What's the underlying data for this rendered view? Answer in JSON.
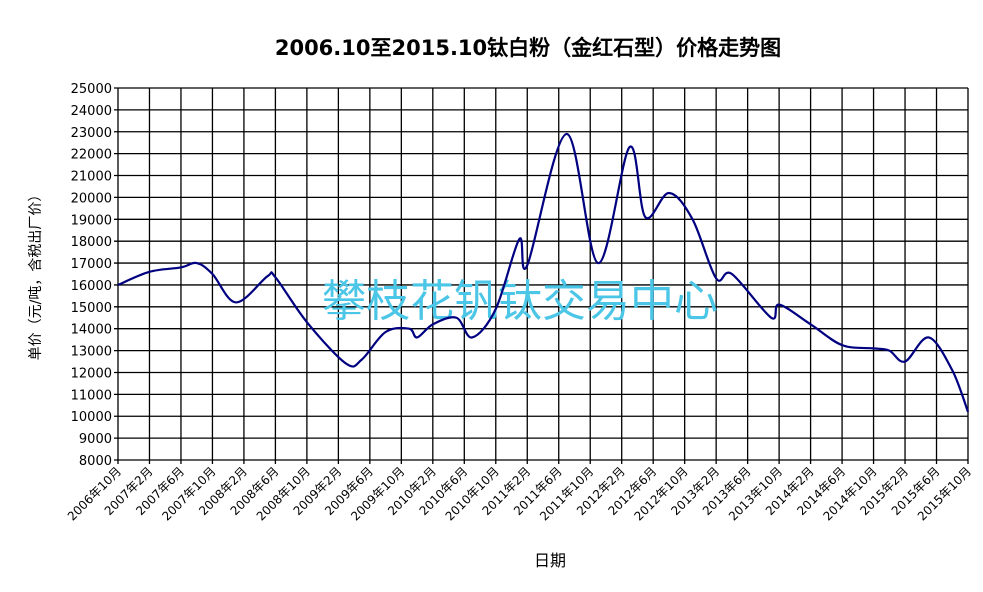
{
  "chart_data": {
    "type": "line",
    "title": "2006.10至2015.10钛白粉（金红石型）价格走势图",
    "xlabel": "日期",
    "ylabel": "单价（元/吨，含税出厂价）",
    "ylim": [
      8000,
      25000
    ],
    "ytick_step": 1000,
    "grid": true,
    "smooth": true,
    "line_color": "#000080",
    "watermark": "攀枝花钒钛交易中心",
    "watermark_color": "#4cc6e6",
    "xticks": [
      "2006-10",
      "2007-02",
      "2007-06",
      "2007-10",
      "2008-02",
      "2008-06",
      "2008-10",
      "2009-02",
      "2009-06",
      "2009-10",
      "2010-02",
      "2010-06",
      "2010-10",
      "2011-02",
      "2011-06",
      "2011-10",
      "2012-02",
      "2012-06",
      "2012-10",
      "2013-02",
      "2013-06",
      "2013-10",
      "2014-02",
      "2014-06",
      "2014-10",
      "2015-02",
      "2015-06",
      "2015-10"
    ],
    "xtick_labels": [
      "2006年10月",
      "2007年2月",
      "2007年6月",
      "2007年10月",
      "2008年2月",
      "2008年6月",
      "2008年10月",
      "2009年2月",
      "2009年6月",
      "2009年10月",
      "2010年2月",
      "2010年6月",
      "2010年10月",
      "2011年2月",
      "2011年6月",
      "2011年10月",
      "2012年2月",
      "2012年6月",
      "2012年10月",
      "2013年2月",
      "2013年6月",
      "2013年10月",
      "2014年2月",
      "2014年6月",
      "2014年10月",
      "2015年2月",
      "2015年6月",
      "2015年10月"
    ],
    "points": [
      {
        "date": "2006-10",
        "value": 16000
      },
      {
        "date": "2007-02",
        "value": 16600
      },
      {
        "date": "2007-06",
        "value": 16800
      },
      {
        "date": "2007-08",
        "value": 17000
      },
      {
        "date": "2007-10",
        "value": 16500
      },
      {
        "date": "2008-01",
        "value": 15200
      },
      {
        "date": "2008-05",
        "value": 16400
      },
      {
        "date": "2008-06",
        "value": 16350
      },
      {
        "date": "2008-10",
        "value": 14300
      },
      {
        "date": "2009-03",
        "value": 12400
      },
      {
        "date": "2009-05",
        "value": 12600
      },
      {
        "date": "2009-08",
        "value": 13850
      },
      {
        "date": "2009-11",
        "value": 14000
      },
      {
        "date": "2009-12",
        "value": 13600
      },
      {
        "date": "2010-02",
        "value": 14200
      },
      {
        "date": "2010-05",
        "value": 14500
      },
      {
        "date": "2010-07",
        "value": 13600
      },
      {
        "date": "2010-10",
        "value": 14900
      },
      {
        "date": "2011-01",
        "value": 18100
      },
      {
        "date": "2011-02",
        "value": 16900
      },
      {
        "date": "2011-07",
        "value": 22900
      },
      {
        "date": "2011-11",
        "value": 17000
      },
      {
        "date": "2012-03",
        "value": 22300
      },
      {
        "date": "2012-05",
        "value": 19100
      },
      {
        "date": "2012-08",
        "value": 20200
      },
      {
        "date": "2012-11",
        "value": 19000
      },
      {
        "date": "2013-02",
        "value": 16300
      },
      {
        "date": "2013-04",
        "value": 16500
      },
      {
        "date": "2013-09",
        "value": 14500
      },
      {
        "date": "2013-10",
        "value": 15100
      },
      {
        "date": "2014-02",
        "value": 14200
      },
      {
        "date": "2014-06",
        "value": 13250
      },
      {
        "date": "2014-10",
        "value": 13100
      },
      {
        "date": "2014-12",
        "value": 13000
      },
      {
        "date": "2015-02",
        "value": 12500
      },
      {
        "date": "2015-05",
        "value": 13600
      },
      {
        "date": "2015-08",
        "value": 12100
      },
      {
        "date": "2015-10",
        "value": 10200
      }
    ]
  }
}
